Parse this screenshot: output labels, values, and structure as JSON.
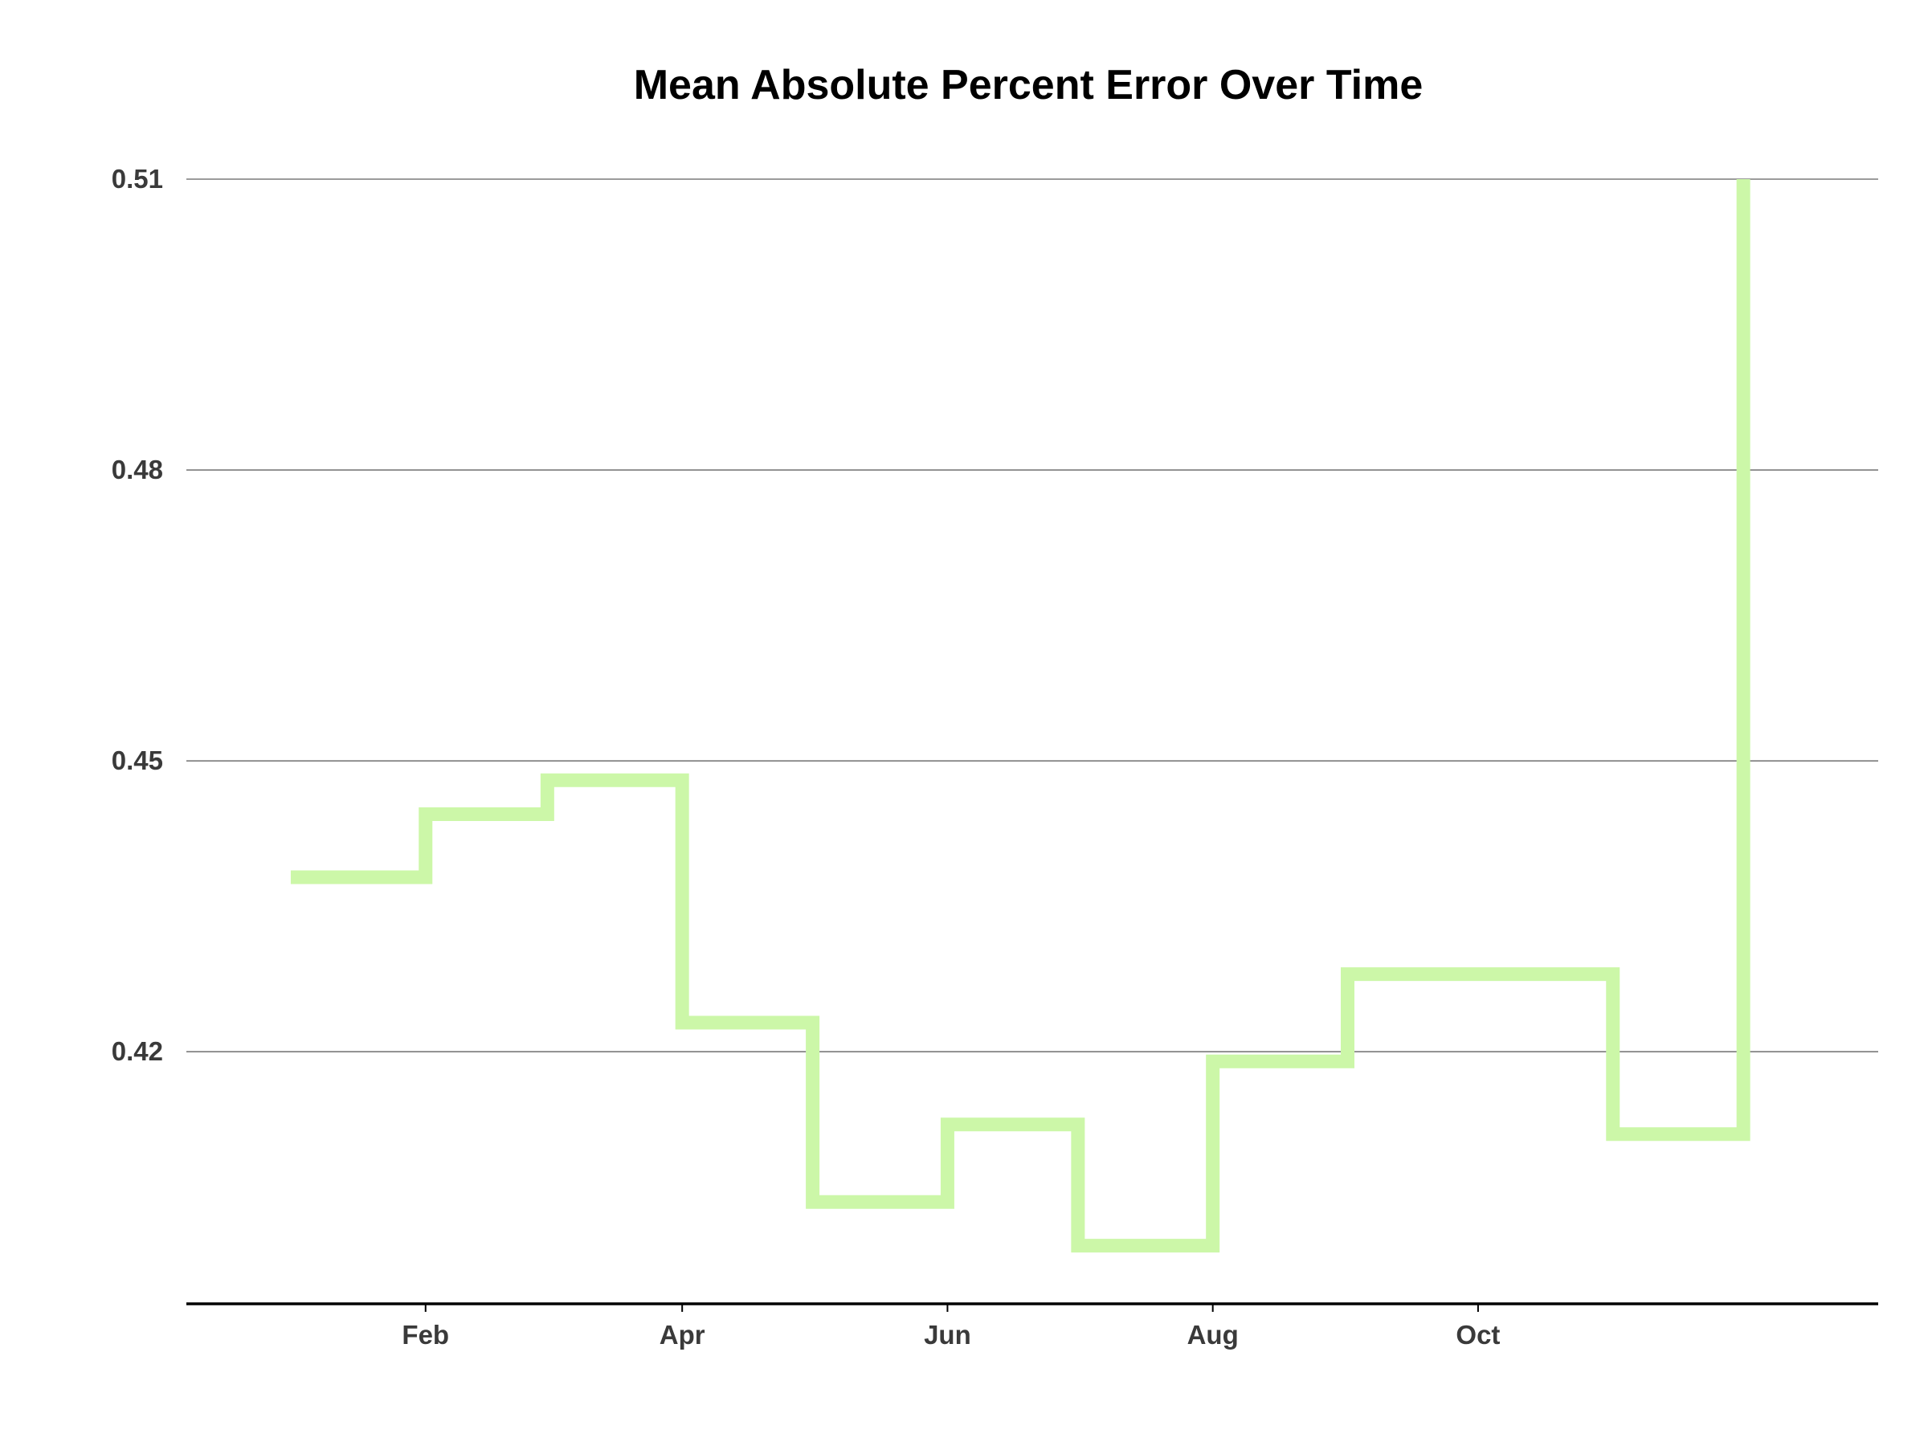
{
  "chart_data": {
    "type": "line",
    "step": true,
    "title": "Mean Absolute Percent Error Over Time",
    "xlabel": "",
    "ylabel": "",
    "x_ticks": [
      {
        "date": "2021-02-01",
        "label": "Feb"
      },
      {
        "date": "2021-04-01",
        "label": "Apr"
      },
      {
        "date": "2021-06-01",
        "label": "Jun"
      },
      {
        "date": "2021-08-01",
        "label": "Aug"
      },
      {
        "date": "2021-10-01",
        "label": "Oct"
      }
    ],
    "y_ticks": [
      0.42,
      0.45,
      0.48,
      0.51
    ],
    "y_tick_labels": [
      "0.42",
      "0.45",
      "0.48",
      "0.51"
    ],
    "ylim": [
      0.394,
      0.51
    ],
    "xlim": [
      "2020-12-08",
      "2022-01-01"
    ],
    "grid": true,
    "series": [
      {
        "color": "#ccf7a8",
        "x": [
          "2021-01-01",
          "2021-02-01",
          "2021-03-01",
          "2021-04-01",
          "2021-05-01",
          "2021-06-01",
          "2021-07-01",
          "2021-08-01",
          "2021-09-01",
          "2021-10-01",
          "2021-11-01",
          "2021-12-01"
        ],
        "y": [
          0.438,
          0.4445,
          0.448,
          0.423,
          0.4045,
          0.4125,
          0.4,
          0.419,
          0.428,
          0.428,
          0.4115,
          0.51
        ]
      }
    ]
  }
}
